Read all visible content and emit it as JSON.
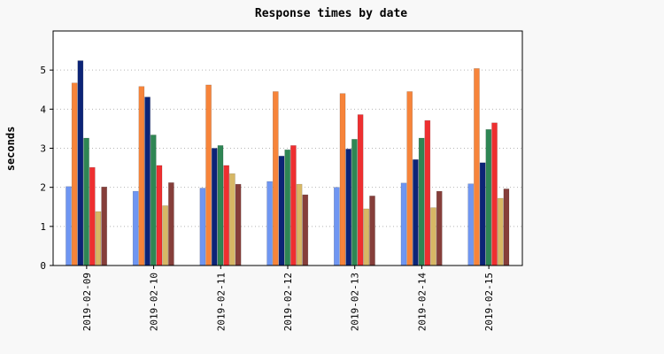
{
  "chart_data": {
    "type": "bar",
    "title": "Response times by date",
    "xlabel": "",
    "ylabel": "seconds",
    "ylim": [
      0,
      6
    ],
    "yticks": [
      0,
      1,
      2,
      3,
      4,
      5
    ],
    "grid": "horizontal dotted",
    "legend": "none",
    "categories": [
      "2019-02-09",
      "2019-02-10",
      "2019-02-11",
      "2019-02-12",
      "2019-02-13",
      "2019-02-14",
      "2019-02-15"
    ],
    "series": [
      {
        "color": "#6f96f2",
        "values": [
          2.02,
          1.9,
          1.98,
          2.15,
          2.0,
          2.11,
          2.09
        ]
      },
      {
        "color": "#f7843a",
        "values": [
          4.67,
          4.58,
          4.62,
          4.45,
          4.4,
          4.45,
          5.04
        ]
      },
      {
        "color": "#0c2477",
        "values": [
          5.24,
          4.31,
          3.0,
          2.8,
          2.98,
          2.71,
          2.63
        ]
      },
      {
        "color": "#2f8654",
        "values": [
          3.26,
          3.34,
          3.07,
          2.96,
          3.23,
          3.26,
          3.48
        ]
      },
      {
        "color": "#ee2f30",
        "values": [
          2.51,
          2.56,
          2.56,
          3.07,
          3.86,
          3.71,
          3.65
        ]
      },
      {
        "color": "#d7b765",
        "values": [
          1.38,
          1.53,
          2.35,
          2.08,
          1.45,
          1.48,
          1.72
        ]
      },
      {
        "color": "#863e3a",
        "values": [
          2.01,
          2.12,
          2.08,
          1.81,
          1.78,
          1.9,
          1.96
        ]
      }
    ]
  }
}
